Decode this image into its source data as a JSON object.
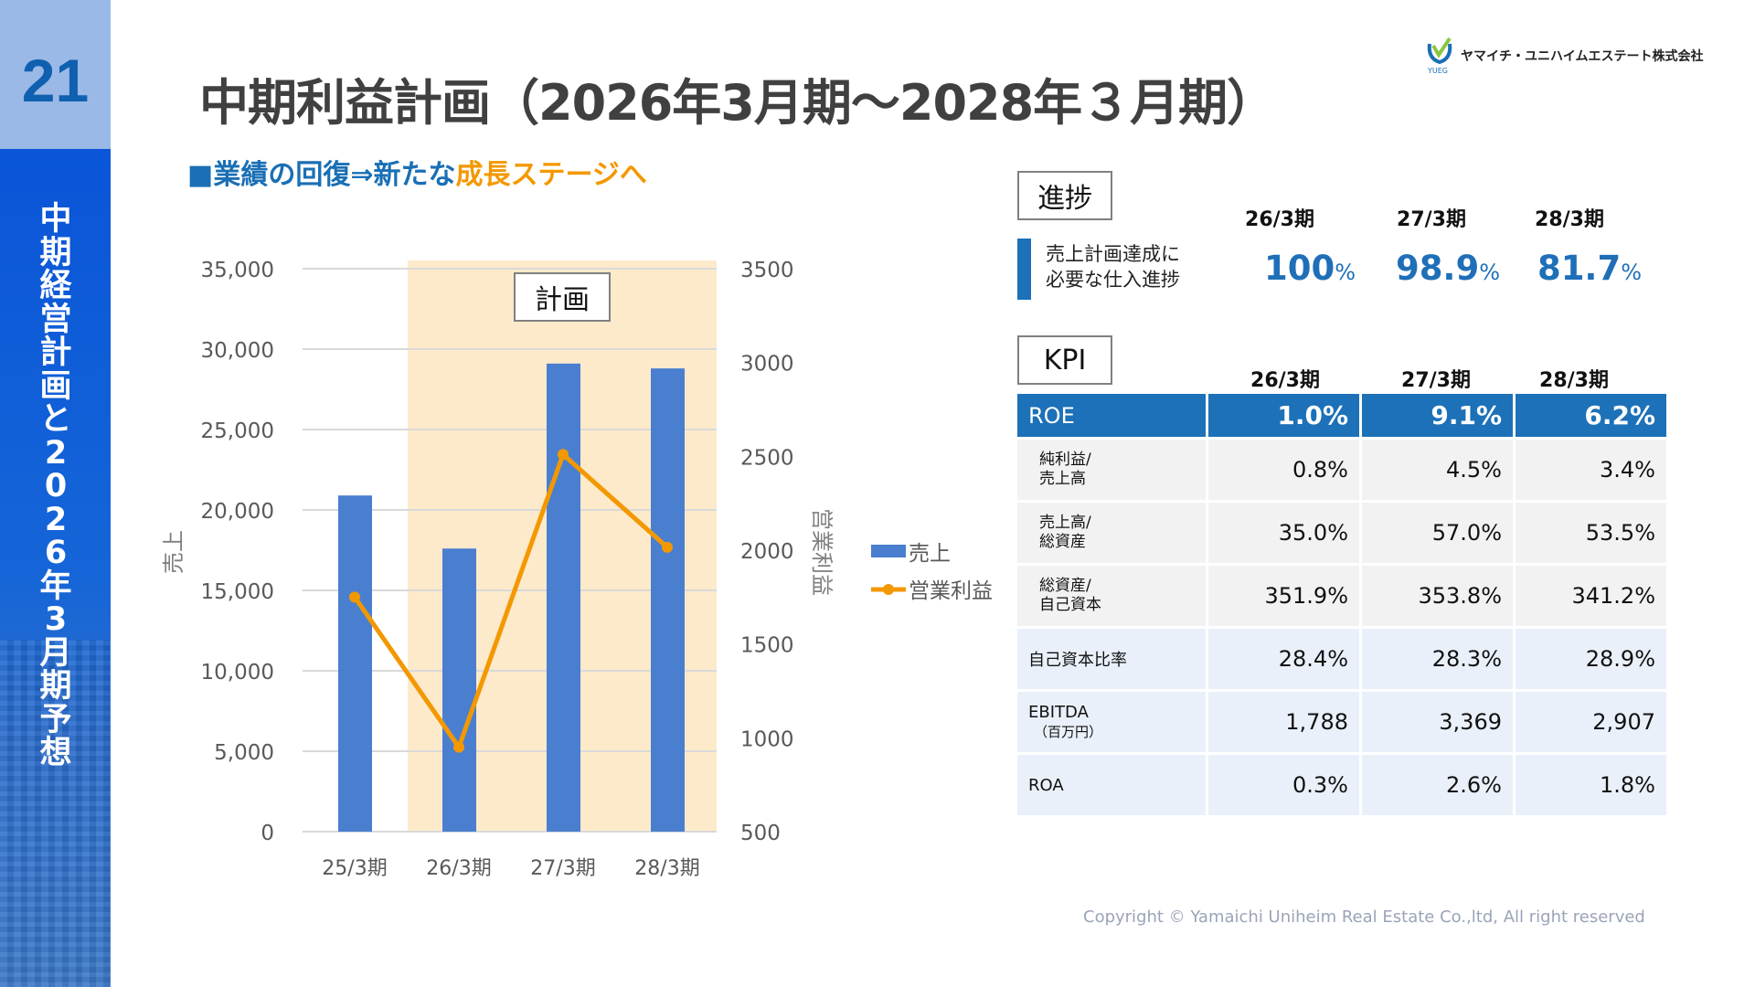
{
  "sidebar": {
    "page_number": "21",
    "section_title": "中期経営計画と2026年3月期予想"
  },
  "header": {
    "title": "中期利益計画（2026年3月期～2028年３月期）",
    "subtitle_prefix": "■業績の回復⇒新たな",
    "subtitle_highlight": "成長ステージへ",
    "logo_text": "ヤマイチ・ユニハイムエステート株式会社",
    "logo_sub": "YUEG"
  },
  "colors": {
    "accent_blue": "#1c71b8",
    "accent_orange": "#f39800",
    "bar_blue": "#4a7fd0",
    "plan_shade": "#fdeacb"
  },
  "chart_data": {
    "type": "bar+line",
    "categories": [
      "25/3期",
      "26/3期",
      "27/3期",
      "28/3期"
    ],
    "series": [
      {
        "name": "売上",
        "type": "bar",
        "axis": "left",
        "values": [
          20900,
          17600,
          29100,
          28800
        ],
        "color": "#4a7fd0"
      },
      {
        "name": "営業利益",
        "type": "line",
        "axis": "right",
        "values": [
          1750,
          950,
          2510,
          2015
        ],
        "color": "#f39800"
      }
    ],
    "ylabel": "売上",
    "y2label": "営業利益",
    "ylim": [
      0,
      35000
    ],
    "y2lim": [
      500,
      3500
    ],
    "yticks": [
      "0",
      "5,000",
      "10,000",
      "15,000",
      "20,000",
      "25,000",
      "30,000",
      "35,000"
    ],
    "y2ticks": [
      "500",
      "1000",
      "1500",
      "2000",
      "2500",
      "3000",
      "3500"
    ],
    "annotation": "計画",
    "plan_categories": [
      "26/3期",
      "27/3期",
      "28/3期"
    ],
    "grid": true,
    "legend": "right"
  },
  "progress": {
    "label": "進捗",
    "desc_line1": "売上計画達成に",
    "desc_line2": "必要な仕入進捗",
    "periods": [
      "26/3期",
      "27/3期",
      "28/3期"
    ],
    "values": [
      "100",
      "98.9",
      "81.7"
    ],
    "unit": "%"
  },
  "kpi": {
    "label": "KPI",
    "periods": [
      "26/3期",
      "27/3期",
      "28/3期"
    ],
    "rows": [
      {
        "l1": "ROE",
        "l2": "",
        "v": [
          "1.0%",
          "9.1%",
          "6.2%"
        ]
      },
      {
        "l1": "純利益/",
        "l2": "売上高",
        "v": [
          "0.8%",
          "4.5%",
          "3.4%"
        ]
      },
      {
        "l1": "売上高/",
        "l2": "総資産",
        "v": [
          "35.0%",
          "57.0%",
          "53.5%"
        ]
      },
      {
        "l1": "総資産/",
        "l2": "自己資本",
        "v": [
          "351.9%",
          "353.8%",
          "341.2%"
        ]
      },
      {
        "l1": "自己資本比率",
        "l2": "",
        "v": [
          "28.4%",
          "28.3%",
          "28.9%"
        ]
      },
      {
        "l1": "EBITDA",
        "l2": "（百万円）",
        "v": [
          "1,788",
          "3,369",
          "2,907"
        ]
      },
      {
        "l1": "ROA",
        "l2": "",
        "v": [
          "0.3%",
          "2.6%",
          "1.8%"
        ]
      }
    ]
  },
  "footer": {
    "copyright": "Copyright © Yamaichi Uniheim Real Estate Co.,ltd, All right reserved"
  }
}
